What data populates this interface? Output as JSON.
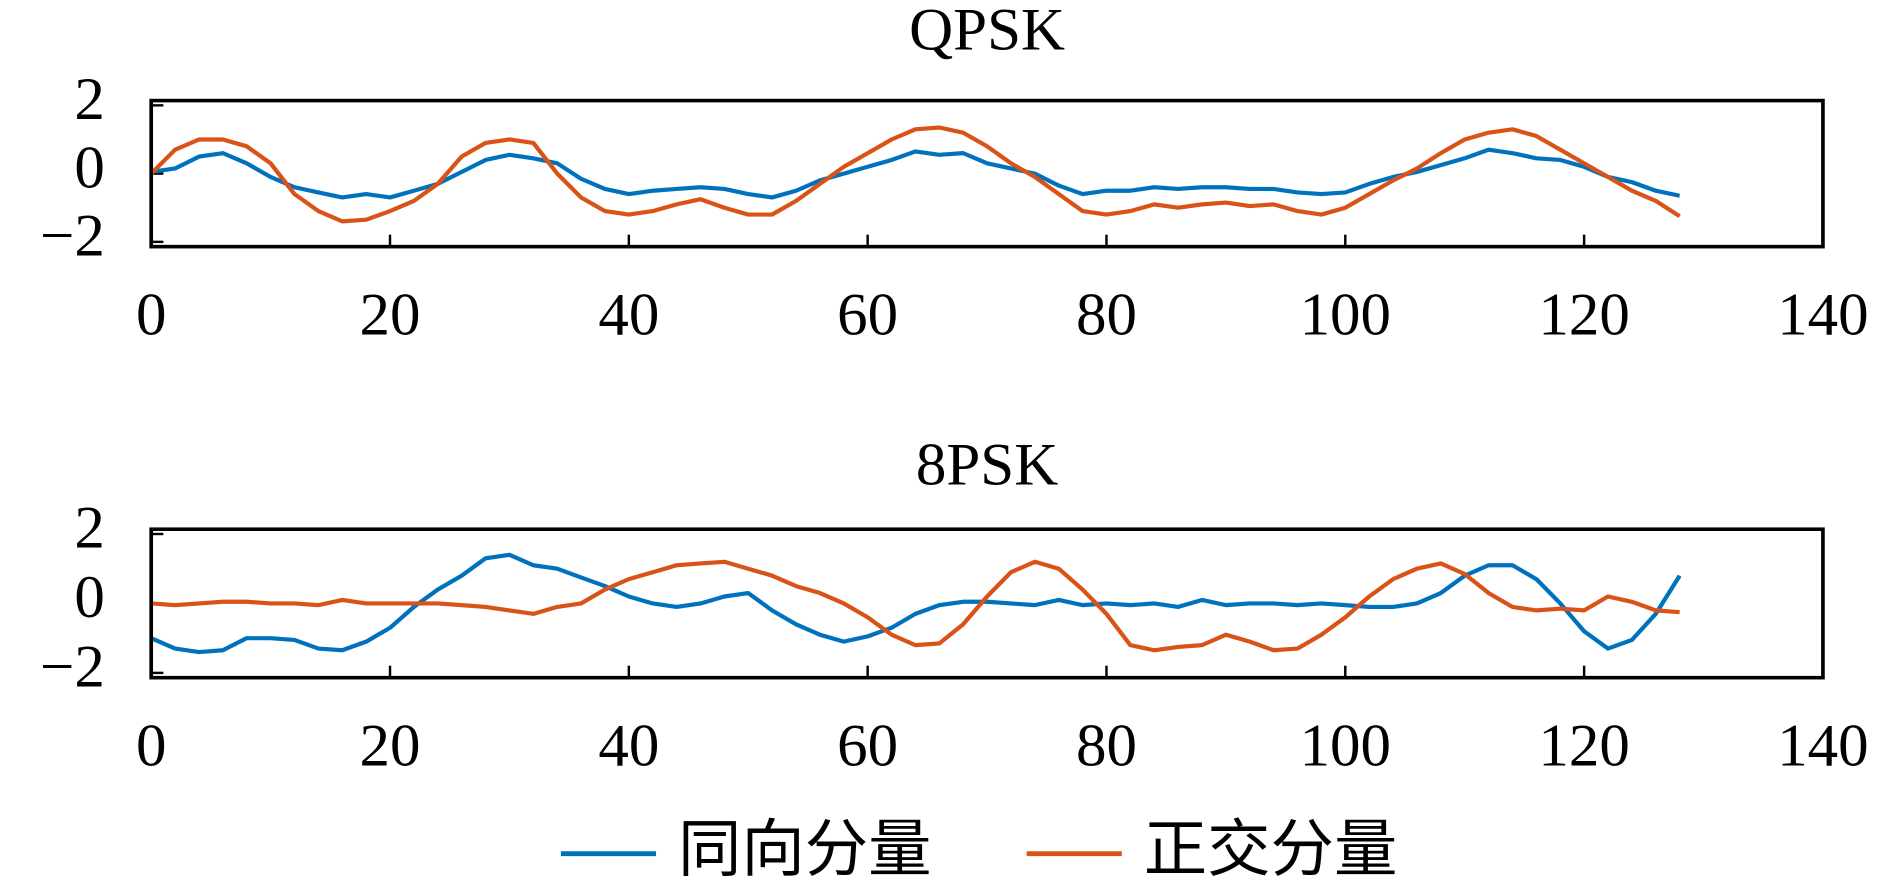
{
  "chart_data": [
    {
      "type": "line",
      "title": "QPSK",
      "x": [
        0,
        2,
        4,
        6,
        8,
        10,
        12,
        14,
        16,
        18,
        20,
        22,
        24,
        26,
        28,
        30,
        32,
        34,
        36,
        38,
        40,
        42,
        44,
        46,
        48,
        50,
        52,
        54,
        56,
        58,
        60,
        62,
        64,
        66,
        68,
        70,
        72,
        74,
        76,
        78,
        80,
        82,
        84,
        86,
        88,
        90,
        92,
        94,
        96,
        98,
        100,
        102,
        104,
        106,
        108,
        110,
        112,
        114,
        116,
        118,
        120,
        122,
        124,
        126,
        128
      ],
      "series": [
        {
          "name": "同向分量",
          "color": "#0072bd",
          "values": [
            0.05,
            0.15,
            0.5,
            0.6,
            0.3,
            -0.1,
            -0.4,
            -0.55,
            -0.7,
            -0.6,
            -0.7,
            -0.5,
            -0.3,
            0.05,
            0.4,
            0.55,
            0.45,
            0.3,
            -0.15,
            -0.45,
            -0.6,
            -0.5,
            -0.45,
            -0.4,
            -0.45,
            -0.6,
            -0.7,
            -0.5,
            -0.2,
            0,
            0.2,
            0.4,
            0.65,
            0.55,
            0.6,
            0.3,
            0.15,
            0,
            -0.35,
            -0.6,
            -0.5,
            -0.5,
            -0.4,
            -0.45,
            -0.4,
            -0.4,
            -0.45,
            -0.45,
            -0.55,
            -0.6,
            -0.55,
            -0.3,
            -0.1,
            0.05,
            0.25,
            0.45,
            0.7,
            0.6,
            0.45,
            0.4,
            0.2,
            -0.1,
            -0.25,
            -0.5,
            -0.65
          ]
        },
        {
          "name": "正交分量",
          "color": "#d95319",
          "values": [
            0,
            0.7,
            1,
            1,
            0.8,
            0.3,
            -0.6,
            -1.1,
            -1.4,
            -1.35,
            -1.1,
            -0.8,
            -0.3,
            0.5,
            0.9,
            1,
            0.9,
            0,
            -0.7,
            -1.1,
            -1.2,
            -1.1,
            -0.9,
            -0.75,
            -1,
            -1.2,
            -1.2,
            -0.8,
            -0.3,
            0.2,
            0.6,
            1,
            1.3,
            1.35,
            1.2,
            0.8,
            0.3,
            -0.1,
            -0.6,
            -1.1,
            -1.2,
            -1.1,
            -0.9,
            -1,
            -0.9,
            -0.85,
            -0.95,
            -0.9,
            -1.1,
            -1.2,
            -1,
            -0.6,
            -0.2,
            0.15,
            0.6,
            1,
            1.2,
            1.3,
            1.1,
            0.7,
            0.3,
            -0.1,
            -0.5,
            -0.8,
            -1.25
          ]
        }
      ],
      "xlim": [
        0,
        140
      ],
      "xticks": [
        0,
        20,
        40,
        60,
        80,
        100,
        120,
        140
      ],
      "ylim": [
        -2,
        2
      ],
      "yticks": [
        {
          "value": -2,
          "label": "−2"
        },
        0,
        2
      ]
    },
    {
      "type": "line",
      "title": "8PSK",
      "x": [
        0,
        2,
        4,
        6,
        8,
        10,
        12,
        14,
        16,
        18,
        20,
        22,
        24,
        26,
        28,
        30,
        32,
        34,
        36,
        38,
        40,
        42,
        44,
        46,
        48,
        50,
        52,
        54,
        56,
        58,
        60,
        62,
        64,
        66,
        68,
        70,
        72,
        74,
        76,
        78,
        80,
        82,
        84,
        86,
        88,
        90,
        92,
        94,
        96,
        98,
        100,
        102,
        104,
        106,
        108,
        110,
        112,
        114,
        116,
        118,
        120,
        122,
        124,
        126,
        128
      ],
      "series": [
        {
          "color": "#0072bd",
          "values": [
            -1,
            -1.3,
            -1.4,
            -1.35,
            -1,
            -1,
            -1.05,
            -1.3,
            -1.35,
            -1.1,
            -0.7,
            -0.1,
            0.4,
            0.8,
            1.3,
            1.4,
            1.1,
            1,
            0.75,
            0.5,
            0.2,
            0,
            -0.1,
            0,
            0.2,
            0.3,
            -0.2,
            -0.6,
            -0.9,
            -1.1,
            -0.95,
            -0.7,
            -0.3,
            -0.05,
            0.05,
            0.05,
            0,
            -0.05,
            0.1,
            -0.05,
            0,
            -0.05,
            0,
            -0.1,
            0.1,
            -0.05,
            0,
            0,
            -0.05,
            0,
            -0.05,
            -0.1,
            -0.1,
            0,
            0.3,
            0.8,
            1.1,
            1.1,
            0.7,
            0,
            -0.8,
            -1.3,
            -1.05,
            -0.3,
            0.8
          ]
        },
        {
          "color": "#d95319",
          "values": [
            0,
            -0.05,
            0,
            0.05,
            0.05,
            0,
            0,
            -0.05,
            0.1,
            0,
            0,
            0,
            0,
            -0.05,
            -0.1,
            -0.2,
            -0.3,
            -0.1,
            0,
            0.4,
            0.7,
            0.9,
            1.1,
            1.15,
            1.2,
            1,
            0.8,
            0.5,
            0.3,
            0,
            -0.4,
            -0.9,
            -1.2,
            -1.15,
            -0.6,
            0.2,
            0.9,
            1.2,
            1,
            0.4,
            -0.3,
            -1.2,
            -1.35,
            -1.25,
            -1.2,
            -0.9,
            -1.1,
            -1.35,
            -1.3,
            -0.9,
            -0.4,
            0.2,
            0.7,
            1,
            1.15,
            0.85,
            0.3,
            -0.1,
            -0.2,
            -0.15,
            -0.2,
            0.2,
            0.05,
            -0.2,
            -0.25
          ]
        }
      ],
      "xlim": [
        0,
        140
      ],
      "xticks": [
        0,
        20,
        40,
        60,
        80,
        100,
        120,
        140
      ],
      "ylim": [
        -2,
        2
      ],
      "yticks": [
        {
          "value": -2,
          "label": "−2"
        },
        0,
        2
      ]
    }
  ]
}
